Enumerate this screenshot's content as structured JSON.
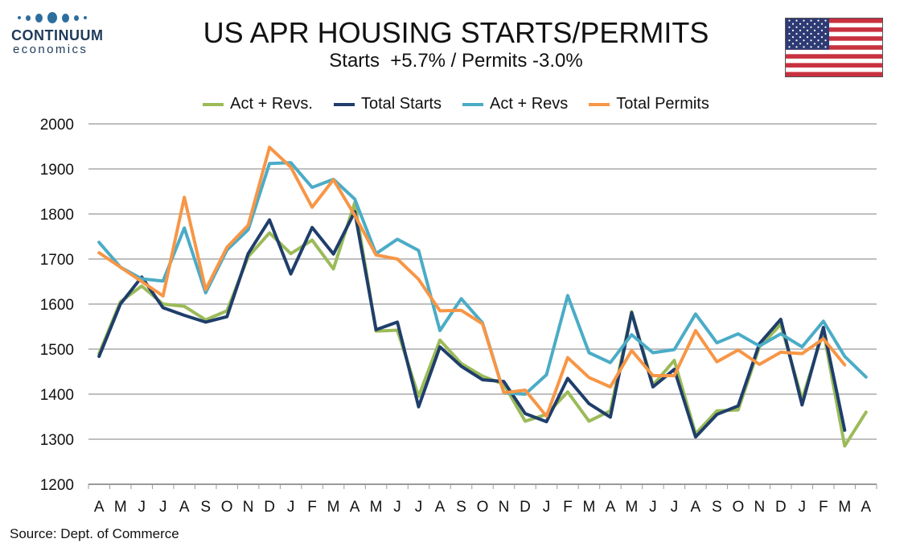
{
  "logo": {
    "brand": "CONTINUUM",
    "sub": "economics"
  },
  "header": {
    "title": "US APR HOUSING STARTS/PERMITS",
    "subtitle": "Starts  +5.7% / Permits -3.0%"
  },
  "source": "Source: Dept. of Commerce",
  "colors": {
    "green": "#9bbb59",
    "navy": "#1f3e6b",
    "teal": "#4bacc6",
    "orange": "#f79646",
    "grid": "#bfbfbf"
  },
  "chart_data": {
    "type": "line",
    "title": "US APR HOUSING STARTS/PERMITS",
    "subtitle": "Starts  +5.7% / Permits -3.0%",
    "categories": [
      "A",
      "M",
      "J",
      "J",
      "A",
      "S",
      "O",
      "N",
      "D",
      "J",
      "F",
      "M",
      "A",
      "M",
      "J",
      "J",
      "A",
      "S",
      "O",
      "N",
      "D",
      "J",
      "F",
      "M",
      "A",
      "M",
      "J",
      "J",
      "A",
      "S",
      "O",
      "N",
      "D",
      "J",
      "F",
      "M",
      "A"
    ],
    "ylim": [
      1200,
      2000
    ],
    "yticks": [
      1200,
      1300,
      1400,
      1500,
      1600,
      1700,
      1800,
      1900,
      2000
    ],
    "grid": true,
    "legend_position": "top",
    "series": [
      {
        "name": "Act + Revs.",
        "color": "#9bbb59",
        "values": [
          1490,
          1605,
          1640,
          1600,
          1595,
          1565,
          1585,
          1705,
          1758,
          1712,
          1742,
          1678,
          1825,
          1540,
          1542,
          1395,
          1520,
          1468,
          1440,
          1422,
          1340,
          1355,
          1405,
          1340,
          1363,
          1583,
          1420,
          1475,
          1312,
          1363,
          1365,
          1505,
          1555,
          1388,
          1540,
          1285,
          1360
        ]
      },
      {
        "name": "Total Starts",
        "color": "#1f3e6b",
        "values": [
          1484,
          1600,
          1660,
          1592,
          1575,
          1560,
          1572,
          1712,
          1787,
          1667,
          1770,
          1711,
          1805,
          1543,
          1560,
          1372,
          1505,
          1462,
          1432,
          1428,
          1357,
          1339,
          1435,
          1379,
          1349,
          1581,
          1416,
          1455,
          1305,
          1355,
          1374,
          1512,
          1566,
          1376,
          1548,
          1320,
          null
        ]
      },
      {
        "name": "Act + Revs",
        "color": "#4bacc6",
        "values": [
          1737,
          1682,
          1656,
          1651,
          1769,
          1625,
          1720,
          1765,
          1912,
          1914,
          1859,
          1877,
          1833,
          1712,
          1744,
          1719,
          1541,
          1612,
          1558,
          1403,
          1400,
          1443,
          1619,
          1492,
          1470,
          1532,
          1492,
          1499,
          1578,
          1514,
          1534,
          1507,
          1534,
          1505,
          1562,
          1484,
          1438
        ]
      },
      {
        "name": "Total Permits",
        "color": "#f79646",
        "values": [
          1714,
          1682,
          1650,
          1618,
          1837,
          1632,
          1726,
          1775,
          1948,
          1904,
          1815,
          1876,
          1797,
          1709,
          1700,
          1655,
          1585,
          1586,
          1556,
          1403,
          1409,
          1351,
          1481,
          1437,
          1416,
          1497,
          1441,
          1441,
          1541,
          1472,
          1498,
          1466,
          1493,
          1490,
          1523,
          1465,
          null
        ]
      }
    ]
  }
}
